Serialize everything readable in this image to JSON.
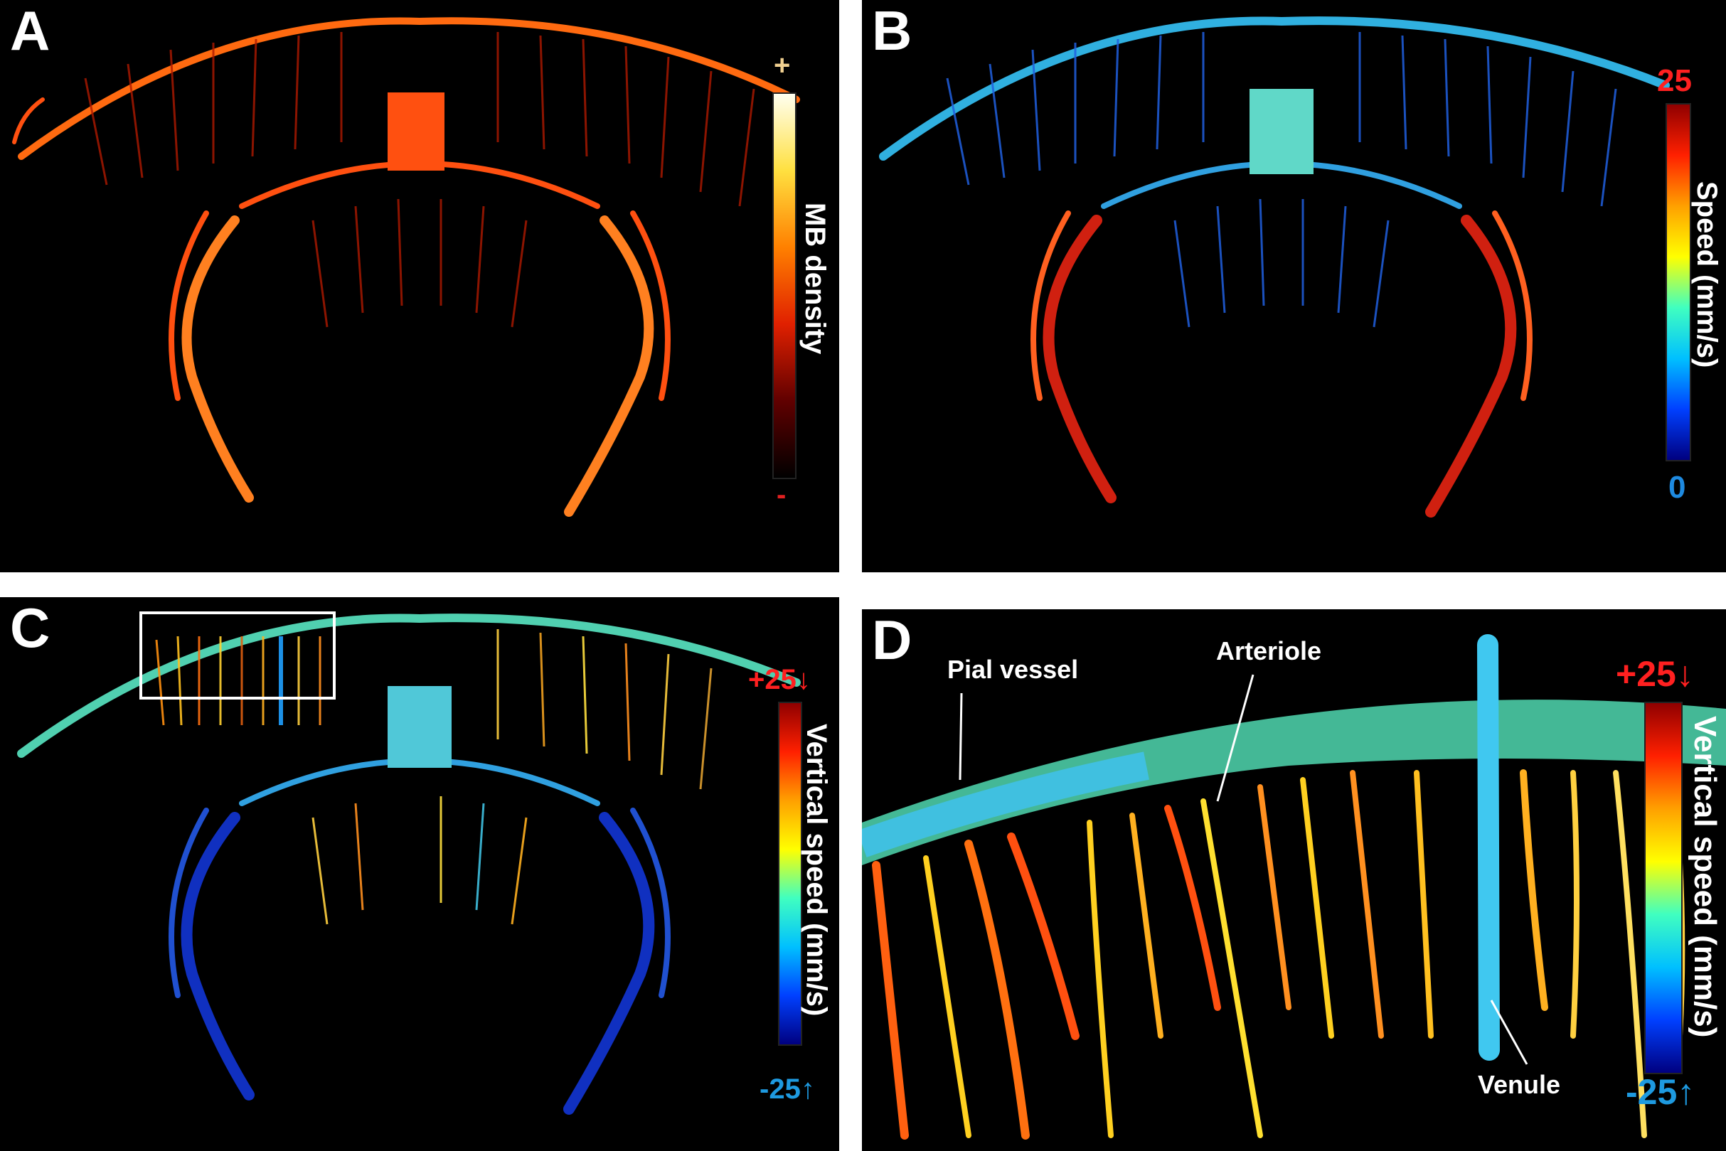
{
  "figure": {
    "panels": [
      {
        "label": "A",
        "colorbar": {
          "title": "MB density",
          "max": "+",
          "min": "-",
          "max_color": "#f0d090",
          "min_color": "#e02020",
          "stops": [
            "#fffff0",
            "#ffe040",
            "#ff8000",
            "#e02000",
            "#600000",
            "#000000"
          ]
        }
      },
      {
        "label": "B",
        "colorbar": {
          "title": "Speed (mm/s)",
          "max": "25",
          "min": "0",
          "max_color": "#ff2020",
          "min_color": "#1e8ae0",
          "stops": [
            "#900000",
            "#ff2000",
            "#ffa000",
            "#ffff00",
            "#40ffc0",
            "#00c0ff",
            "#0040ff",
            "#000080"
          ]
        }
      },
      {
        "label": "C",
        "colorbar": {
          "title": "Vertical speed (mm/s)",
          "max": "+25↓",
          "min": "-25↑",
          "max_color": "#ff2020",
          "min_color": "#1e9ae0",
          "stops": [
            "#900000",
            "#ff2000",
            "#ffa000",
            "#ffff00",
            "#40ffc0",
            "#00c0ff",
            "#0040ff",
            "#000080"
          ]
        }
      },
      {
        "label": "D",
        "colorbar": {
          "title": "Vertical speed (mm/s)",
          "max": "+25↓",
          "min": "-25↑",
          "max_color": "#ff2020",
          "min_color": "#1e9ae0",
          "stops": [
            "#900000",
            "#ff2000",
            "#ffa000",
            "#ffff00",
            "#40ffc0",
            "#00c0ff",
            "#0040ff",
            "#000080"
          ]
        },
        "annotations": {
          "pial": "Pial vessel",
          "arteriole": "Arteriole",
          "venule": "Venule"
        }
      }
    ]
  }
}
